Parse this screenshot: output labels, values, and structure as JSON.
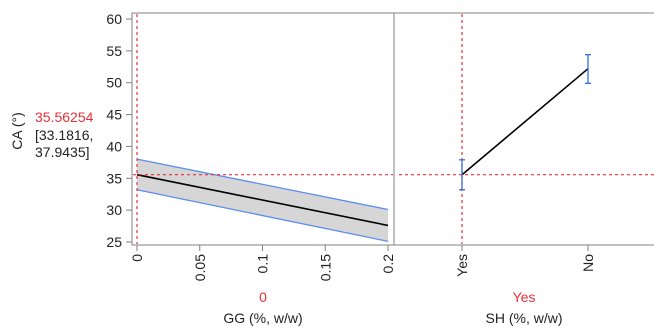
{
  "chart_data": {
    "type": "prediction_profiler",
    "response": {
      "label": "CA (°)",
      "predicted": "35.56254",
      "ci_line1": "[33.1816,",
      "ci_line2": "37.9435]",
      "ylim": [
        25,
        60
      ],
      "yticks": [
        "25",
        "30",
        "35",
        "40",
        "45",
        "50",
        "55",
        "60"
      ],
      "current_value": 35.56254
    },
    "factors": [
      {
        "name": "GG (%, w/w)",
        "kind": "continuous",
        "current": "0",
        "current_value": 0,
        "xlim": [
          0,
          0.2
        ],
        "xticks": [
          "0",
          "0.05",
          "0.1",
          "0.15",
          "0.2"
        ],
        "xtick_values": [
          0,
          0.05,
          0.1,
          0.15,
          0.2
        ],
        "prediction": {
          "x": [
            0,
            0.2
          ],
          "y": [
            35.56,
            27.6
          ]
        },
        "ci_upper": {
          "x": [
            0,
            0.2
          ],
          "y": [
            38.0,
            30.1
          ]
        },
        "ci_lower": {
          "x": [
            0,
            0.2
          ],
          "y": [
            33.2,
            25.1
          ]
        }
      },
      {
        "name": "SH (%, w/w)",
        "kind": "categorical",
        "current": "Yes",
        "categories": [
          "Yes",
          "No"
        ],
        "values": [
          35.56,
          52.2
        ],
        "error_low": [
          33.2,
          49.9
        ],
        "error_high": [
          37.9,
          54.4
        ]
      }
    ],
    "colors": {
      "current_marker": "#e8303a",
      "prediction_line": "#000000",
      "ci_band_fill": "#d6d6d6",
      "ci_band_edge": "#5b8def",
      "error_bar": "#2f6fe0",
      "axis": "#808080",
      "text": "#222222"
    }
  }
}
